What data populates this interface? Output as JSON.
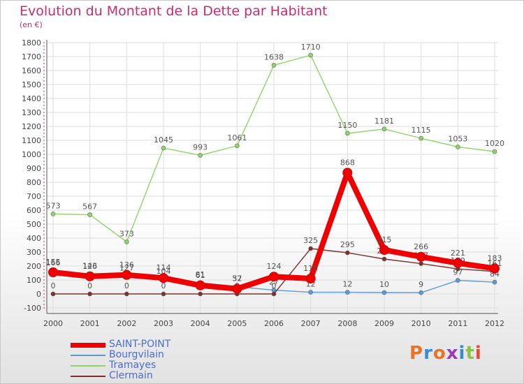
{
  "title": "Evolution du Montant de la Dette par Habitant",
  "subtitle": "(en €)",
  "logo_text": "Proxiti",
  "logo_colors": [
    "#e8742a",
    "#3a8bd6",
    "#e8742a",
    "#9a3db0",
    "#3a8bd6",
    "#8bc34a",
    "#e84a3a"
  ],
  "chart_data": {
    "type": "line",
    "x": [
      "2000",
      "2001",
      "2002",
      "2003",
      "2004",
      "2005",
      "2006",
      "2007",
      "2008",
      "2009",
      "2010",
      "2011",
      "2012"
    ],
    "ylim": [
      -100,
      1800
    ],
    "yticks": [
      -100,
      0,
      100,
      200,
      300,
      400,
      500,
      600,
      700,
      800,
      900,
      1000,
      1100,
      1200,
      1300,
      1400,
      1500,
      1600,
      1700,
      1800
    ],
    "grid": true,
    "legend_position": "bottom-left",
    "series": [
      {
        "name": "Bourgvilain",
        "color": "#5b9bd5",
        "values": [
          166,
          143,
          127,
          104,
          81,
          52,
          27,
          12,
          12,
          10,
          9,
          97,
          84
        ]
      },
      {
        "name": "Tramayes",
        "color": "#8fd46a",
        "values": [
          573,
          567,
          373,
          1045,
          993,
          1061,
          1638,
          1710,
          1150,
          1181,
          1115,
          1053,
          1020
        ]
      },
      {
        "name": "Clermain",
        "color": "#7a3030",
        "values": [
          0,
          0,
          0,
          0,
          0,
          0,
          0,
          325,
          295,
          250,
          217,
          179,
          161
        ]
      },
      {
        "name": "SAINT-POINT",
        "color": "#ee0000",
        "values": [
          155,
          126,
          136,
          114,
          61,
          37,
          124,
          110,
          868,
          315,
          266,
          221,
          183
        ]
      }
    ],
    "legend_order": [
      "SAINT-POINT",
      "Bourgvilain",
      "Tramayes",
      "Clermain"
    ]
  }
}
